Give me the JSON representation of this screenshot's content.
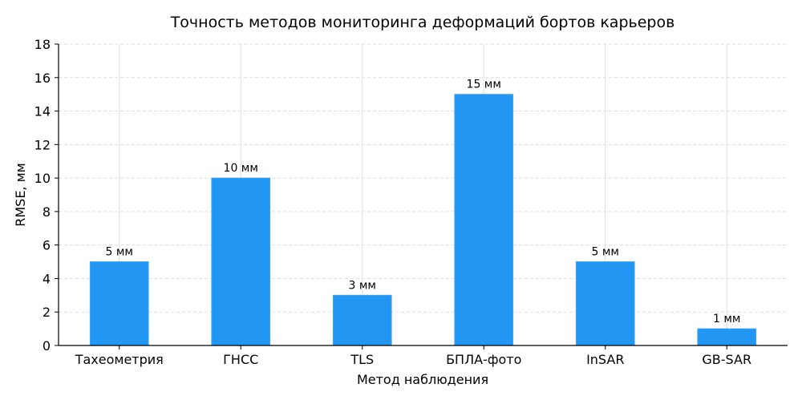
{
  "chart_data": {
    "type": "bar",
    "title": "Точность методов мониторинга деформаций бортов карьеров",
    "xlabel": "Метод наблюдения",
    "ylabel": "RMSE, мм",
    "categories": [
      "Тахеометрия",
      "ГНСС",
      "TLS",
      "БПЛА-фото",
      "InSAR",
      "GB-SAR"
    ],
    "values": [
      5,
      10,
      3,
      15,
      5,
      1
    ],
    "value_labels": [
      "5 мм",
      "10 мм",
      "3 мм",
      "15 мм",
      "5 мм",
      "1 мм"
    ],
    "ylim": [
      0,
      18
    ],
    "yticks": [
      0,
      2,
      4,
      6,
      8,
      10,
      12,
      14,
      16,
      18
    ],
    "grid": true,
    "bar_color": "#2196f3",
    "bar_edge_color": "#42a5f5"
  }
}
